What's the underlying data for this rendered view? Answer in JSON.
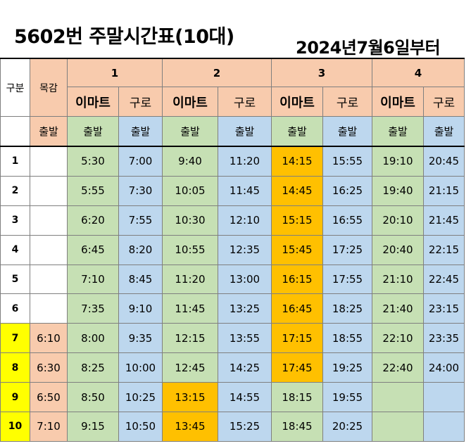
{
  "title": "5602번 주말시간표(10대)",
  "subtitle": "2024년7월6일부터",
  "header": {
    "gubun": "구분",
    "mokgam": "목감",
    "groups": [
      "1",
      "2",
      "3",
      "4"
    ],
    "places": [
      "이마트",
      "구로",
      "이마트",
      "구로",
      "이마트",
      "구로",
      "이마트",
      "구로"
    ],
    "depart": "출발"
  },
  "rows": [
    {
      "no": "1",
      "mokgam": "",
      "times": [
        "5:30",
        "7:00",
        "9:40",
        "11:20",
        "14:15",
        "15:55",
        "19:10",
        "20:45"
      ]
    },
    {
      "no": "2",
      "mokgam": "",
      "times": [
        "5:55",
        "7:30",
        "10:05",
        "11:45",
        "14:45",
        "16:25",
        "19:40",
        "21:15"
      ]
    },
    {
      "no": "3",
      "mokgam": "",
      "times": [
        "6:20",
        "7:55",
        "10:30",
        "12:10",
        "15:15",
        "16:55",
        "20:10",
        "21:45"
      ]
    },
    {
      "no": "4",
      "mokgam": "",
      "times": [
        "6:45",
        "8:20",
        "10:55",
        "12:35",
        "15:45",
        "17:25",
        "20:40",
        "22:15"
      ]
    },
    {
      "no": "5",
      "mokgam": "",
      "times": [
        "7:10",
        "8:45",
        "11:20",
        "13:00",
        "16:15",
        "17:55",
        "21:10",
        "22:45"
      ]
    },
    {
      "no": "6",
      "mokgam": "",
      "times": [
        "7:35",
        "9:10",
        "11:45",
        "13:25",
        "16:45",
        "18:25",
        "21:40",
        "23:15"
      ]
    },
    {
      "no": "7",
      "mokgam": "6:10",
      "times": [
        "8:00",
        "9:35",
        "12:15",
        "13:55",
        "17:15",
        "18:55",
        "22:10",
        "23:35"
      ]
    },
    {
      "no": "8",
      "mokgam": "6:30",
      "times": [
        "8:25",
        "10:00",
        "12:45",
        "14:25",
        "17:45",
        "19:25",
        "22:40",
        "24:00"
      ]
    },
    {
      "no": "9",
      "mokgam": "6:50",
      "times": [
        "8:50",
        "10:25",
        "13:15",
        "14:55",
        "18:15",
        "19:55",
        "",
        ""
      ]
    },
    {
      "no": "10",
      "mokgam": "7:10",
      "times": [
        "9:15",
        "10:50",
        "13:45",
        "15:25",
        "18:45",
        "20:25",
        "",
        ""
      ]
    }
  ],
  "colors": {
    "header": "#f8cbad",
    "emart": "#c6e0b4",
    "guro": "#bdd7ee",
    "highlight": "#ffc000",
    "row_highlight": "#ffff00"
  }
}
